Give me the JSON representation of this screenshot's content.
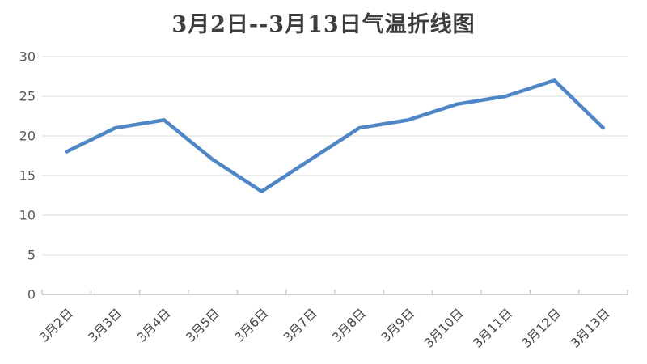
{
  "chart_data": {
    "type": "line",
    "title": "3月2日--3月13日气温折线图",
    "categories": [
      "3月2日",
      "3月3日",
      "3月4日",
      "3月5日",
      "3月6日",
      "3月7日",
      "3月8日",
      "3月9日",
      "3月10日",
      "3月11日",
      "3月12日",
      "3月13日"
    ],
    "series": [
      {
        "name": "气温",
        "values": [
          18,
          21,
          22,
          17,
          13,
          17,
          21,
          22,
          24,
          25,
          27,
          21
        ]
      }
    ],
    "xlabel": "",
    "ylabel": "",
    "ylim": [
      0,
      30
    ],
    "ytick_step": 5,
    "ytick_labels": [
      "0",
      "5",
      "10",
      "15",
      "20",
      "25",
      "30"
    ],
    "grid": "horizontal",
    "legend": "none",
    "x_label_rotation_deg": -45,
    "colors": {
      "line": "#4f86c6",
      "axis": "#bfbfbf",
      "gridline": "#d9d9d9",
      "tick_label": "#595959",
      "x_label": "#454545",
      "title": "#3d3d3d",
      "background": "#ffffff"
    }
  }
}
